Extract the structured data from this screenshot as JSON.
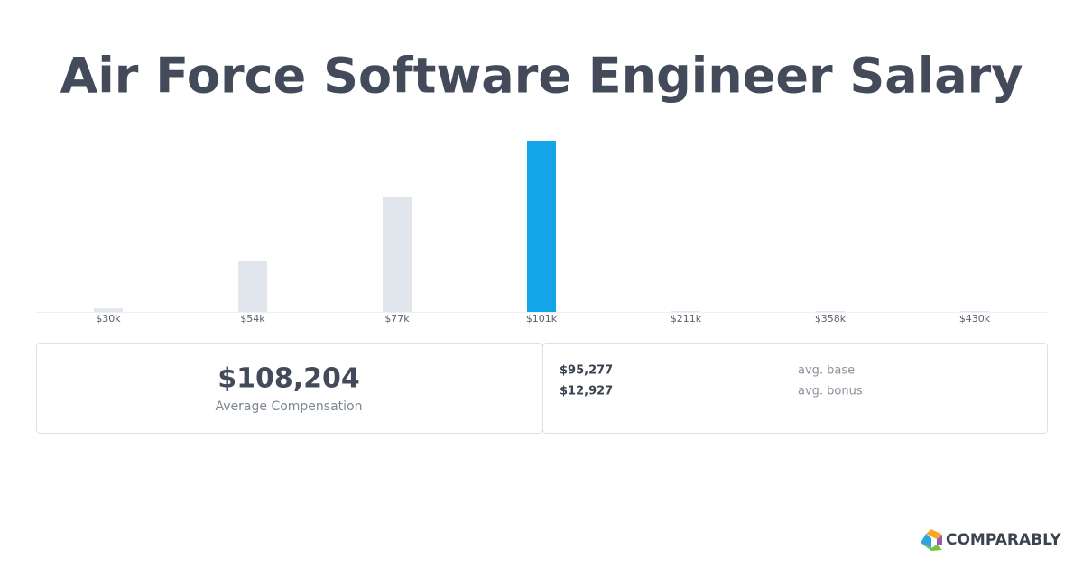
{
  "chart_data": {
    "type": "bar",
    "title": "Air Force Software Engineer Salary",
    "categories": [
      "$30k",
      "$54k",
      "$77k",
      "$101k",
      "$211k",
      "$358k",
      "$430k"
    ],
    "values": [
      2,
      30,
      67,
      100,
      0.5,
      0.5,
      0.5
    ],
    "colors": [
      "#e0e6ec",
      "#e0e6ec",
      "#e0e6ec",
      "#14a5e9",
      "#e0e6ec",
      "#e0e6ec",
      "#e0e6ec"
    ],
    "ylim": [
      0,
      100
    ]
  },
  "summary": {
    "average": "$108,204",
    "average_label": "Average Compensation",
    "rows": [
      [
        "$95,277",
        "avg. base"
      ],
      [
        "$12,927",
        "avg. bonus"
      ]
    ]
  },
  "logo": "COMPARABLY"
}
